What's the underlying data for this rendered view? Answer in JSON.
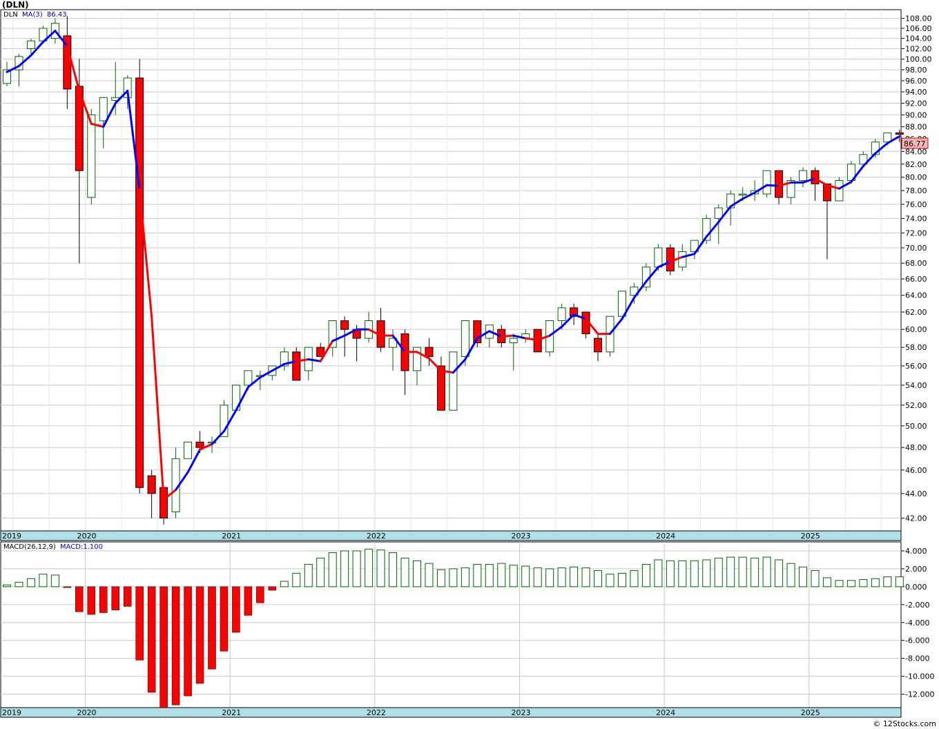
{
  "title": "(DLN)",
  "credit": "© 12Stocks.com",
  "price_panel": {
    "legend_symbol": "DLN",
    "legend_ma": "MA(3)",
    "legend_ma_value": "86.43",
    "last_price_label": "86.77",
    "y_ticks": [
      "108.00",
      "106.00",
      "104.00",
      "102.00",
      "100.00",
      "98.00",
      "96.00",
      "94.00",
      "92.00",
      "90.00",
      "88.00",
      "86.00",
      "84.00",
      "82.00",
      "80.00",
      "78.00",
      "76.00",
      "74.00",
      "72.00",
      "70.00",
      "68.00",
      "66.00",
      "64.00",
      "62.00",
      "60.00",
      "58.00",
      "56.00",
      "54.00",
      "52.00",
      "50.00",
      "48.00",
      "46.00",
      "44.00",
      "42.00"
    ],
    "x_labels": [
      "2019",
      "2020",
      "2021",
      "2022",
      "2023",
      "2024",
      "2025"
    ]
  },
  "macd_panel": {
    "legend_label": "MACD(26,12,9)",
    "legend_value": "MACD:1.100",
    "y_ticks": [
      "4.000",
      "2.000",
      "0.000",
      "-2.000",
      "-4.000",
      "-6.000",
      "-8.000",
      "-10.000",
      "-12.000"
    ],
    "x_labels": [
      "2019",
      "2020",
      "2021",
      "2022",
      "2023",
      "2024",
      "2025"
    ]
  },
  "colors": {
    "up_candle_fill": "#ffffff",
    "up_candle_stroke": "#006400",
    "down_candle_fill": "#ff0000",
    "ma_up": "#0000ff",
    "ma_down": "#ff0000",
    "macd_pos_stroke": "#006400",
    "macd_neg_fill": "#ff0000",
    "axis_band": "#b0e0e6",
    "grid": "#c8c8c8"
  },
  "chart_data": [
    {
      "type": "candlestick",
      "series_name": "DLN",
      "period": "monthly",
      "ylim": [
        41,
        109.5
      ],
      "candles": [
        {
          "o": 95.5,
          "h": 99.5,
          "l": 95,
          "c": 98
        },
        {
          "o": 98,
          "h": 101,
          "l": 95,
          "c": 100.5
        },
        {
          "o": 102,
          "h": 104,
          "l": 101,
          "c": 103.5
        },
        {
          "o": 103.5,
          "h": 106.5,
          "l": 103,
          "c": 106
        },
        {
          "o": 104,
          "h": 108,
          "l": 103,
          "c": 107
        },
        {
          "o": 104.5,
          "h": 108.5,
          "l": 91,
          "c": 94.5
        },
        {
          "o": 95,
          "h": 100,
          "l": 68,
          "c": 81
        },
        {
          "o": 77,
          "h": 91,
          "l": 76,
          "c": 90
        },
        {
          "o": 89,
          "h": 93,
          "l": 84.5,
          "c": 93
        },
        {
          "o": 92.5,
          "h": 99.5,
          "l": 90,
          "c": 93
        },
        {
          "o": 93,
          "h": 97,
          "l": 91,
          "c": 96.5
        },
        {
          "o": 96.5,
          "h": 100,
          "l": 44,
          "c": 44.5
        },
        {
          "o": 45.5,
          "h": 46,
          "l": 42,
          "c": 44
        },
        {
          "o": 44.5,
          "h": 44.5,
          "l": 41.5,
          "c": 42
        },
        {
          "o": 42.5,
          "h": 48,
          "l": 42,
          "c": 47
        },
        {
          "o": 47,
          "h": 48.5,
          "l": 47,
          "c": 48.5
        },
        {
          "o": 48.5,
          "h": 49.5,
          "l": 47.5,
          "c": 48
        },
        {
          "o": 48.5,
          "h": 49,
          "l": 47.5,
          "c": 48.5
        },
        {
          "o": 49,
          "h": 52.5,
          "l": 49,
          "c": 52
        },
        {
          "o": 51.5,
          "h": 54,
          "l": 51.5,
          "c": 54
        },
        {
          "o": 54,
          "h": 55.5,
          "l": 53.5,
          "c": 55.5
        },
        {
          "o": 55,
          "h": 55.5,
          "l": 53.5,
          "c": 55
        },
        {
          "o": 55,
          "h": 56,
          "l": 54.5,
          "c": 56
        },
        {
          "o": 56,
          "h": 58,
          "l": 55.5,
          "c": 57.5
        },
        {
          "o": 57.5,
          "h": 58,
          "l": 54.5,
          "c": 54.5
        },
        {
          "o": 55.5,
          "h": 58,
          "l": 54.5,
          "c": 58
        },
        {
          "o": 58,
          "h": 58.5,
          "l": 57,
          "c": 57
        },
        {
          "o": 58,
          "h": 61,
          "l": 57,
          "c": 61
        },
        {
          "o": 61,
          "h": 61.5,
          "l": 57,
          "c": 60
        },
        {
          "o": 60,
          "h": 60.5,
          "l": 56.5,
          "c": 59
        },
        {
          "o": 59,
          "h": 62,
          "l": 58.5,
          "c": 61
        },
        {
          "o": 61,
          "h": 62.5,
          "l": 57.5,
          "c": 58
        },
        {
          "o": 58,
          "h": 60,
          "l": 55.5,
          "c": 59
        },
        {
          "o": 59.5,
          "h": 60,
          "l": 53,
          "c": 55.5
        },
        {
          "o": 55.5,
          "h": 58,
          "l": 54,
          "c": 58
        },
        {
          "o": 58,
          "h": 59,
          "l": 56,
          "c": 57
        },
        {
          "o": 56,
          "h": 57,
          "l": 51.5,
          "c": 51.5
        },
        {
          "o": 51.5,
          "h": 57.5,
          "l": 51.5,
          "c": 57.5
        },
        {
          "o": 57,
          "h": 61,
          "l": 56,
          "c": 61
        },
        {
          "o": 61,
          "h": 61,
          "l": 58,
          "c": 58.5
        },
        {
          "o": 59,
          "h": 60.5,
          "l": 58,
          "c": 60.5
        },
        {
          "o": 60,
          "h": 60.5,
          "l": 58,
          "c": 58.5
        },
        {
          "o": 58.5,
          "h": 59.5,
          "l": 55.5,
          "c": 59
        },
        {
          "o": 59,
          "h": 60,
          "l": 58.5,
          "c": 59.5
        },
        {
          "o": 60,
          "h": 60,
          "l": 57.5,
          "c": 57.5
        },
        {
          "o": 57.5,
          "h": 61,
          "l": 57,
          "c": 61
        },
        {
          "o": 61,
          "h": 63,
          "l": 60,
          "c": 62.5
        },
        {
          "o": 62.5,
          "h": 63,
          "l": 60.5,
          "c": 61.5
        },
        {
          "o": 62,
          "h": 62,
          "l": 59,
          "c": 59.5
        },
        {
          "o": 59,
          "h": 59.5,
          "l": 56.5,
          "c": 57.5
        },
        {
          "o": 57.5,
          "h": 61.5,
          "l": 57,
          "c": 61.5
        },
        {
          "o": 61.5,
          "h": 64.5,
          "l": 61,
          "c": 64.5
        },
        {
          "o": 64,
          "h": 65.5,
          "l": 63,
          "c": 65
        },
        {
          "o": 65,
          "h": 68,
          "l": 64.5,
          "c": 67.5
        },
        {
          "o": 67.5,
          "h": 70.5,
          "l": 67,
          "c": 70
        },
        {
          "o": 70,
          "h": 70.5,
          "l": 66.5,
          "c": 67
        },
        {
          "o": 67.5,
          "h": 70.5,
          "l": 67,
          "c": 69.5
        },
        {
          "o": 69.5,
          "h": 71,
          "l": 68.5,
          "c": 71
        },
        {
          "o": 71,
          "h": 74.5,
          "l": 70.5,
          "c": 74
        },
        {
          "o": 74,
          "h": 76,
          "l": 70.5,
          "c": 75.5
        },
        {
          "o": 75.5,
          "h": 78,
          "l": 73,
          "c": 77.5
        },
        {
          "o": 77.5,
          "h": 78.5,
          "l": 76.5,
          "c": 77.5
        },
        {
          "o": 77.5,
          "h": 79.5,
          "l": 76.5,
          "c": 78
        },
        {
          "o": 77.5,
          "h": 81,
          "l": 77,
          "c": 81
        },
        {
          "o": 81,
          "h": 81,
          "l": 76,
          "c": 77
        },
        {
          "o": 77,
          "h": 80,
          "l": 76,
          "c": 79.5
        },
        {
          "o": 79.5,
          "h": 81.5,
          "l": 78.5,
          "c": 81
        },
        {
          "o": 81,
          "h": 81.5,
          "l": 76.5,
          "c": 79
        },
        {
          "o": 79,
          "h": 79,
          "l": 68.5,
          "c": 76.5
        },
        {
          "o": 76.5,
          "h": 80,
          "l": 76.5,
          "c": 79.5
        },
        {
          "o": 79.5,
          "h": 82.5,
          "l": 79,
          "c": 82
        },
        {
          "o": 82,
          "h": 84,
          "l": 82,
          "c": 83.5
        },
        {
          "o": 83.5,
          "h": 86,
          "l": 83,
          "c": 85.5
        },
        {
          "o": 85.5,
          "h": 87,
          "l": 85,
          "c": 87
        },
        {
          "o": 87,
          "h": 87.5,
          "l": 85.5,
          "c": 86.77
        }
      ],
      "ma3": [
        97.6,
        98.7,
        100.7,
        103.3,
        105.5,
        102.5,
        94.2,
        88.5,
        88,
        92,
        94.2,
        78.2,
        61.5,
        43.5,
        44.3,
        45.8,
        47.8,
        48.3,
        49.5,
        51.5,
        53.8,
        54.8,
        55.5,
        56.2,
        56.5,
        56.7,
        56.5,
        58.7,
        59.3,
        60,
        60,
        59.3,
        59.3,
        57.5,
        57.5,
        56.8,
        55.5,
        55.3,
        56.7,
        59,
        59.8,
        59.2,
        59.3,
        59,
        58.8,
        59.3,
        60.3,
        61.7,
        61.2,
        59.5,
        59.5,
        61.2,
        63.7,
        65.7,
        67.5,
        68.2,
        68.8,
        69.2,
        71.5,
        73.5,
        75.7,
        76.8,
        77.7,
        78.8,
        78.7,
        79.2,
        79.2,
        79.8,
        78.8,
        78.3,
        79.3,
        81.7,
        83.7,
        85.3,
        86.43
      ],
      "ma_trend": [
        "up",
        "up",
        "up",
        "up",
        "up",
        "down",
        "down",
        "down",
        "up",
        "up",
        "up",
        "down",
        "down",
        "down",
        "up",
        "up",
        "down",
        "up",
        "up",
        "up",
        "up",
        "up",
        "up",
        "up",
        "down",
        "up",
        "down",
        "up",
        "up",
        "up",
        "down",
        "down",
        "up",
        "down",
        "down",
        "down",
        "down",
        "up",
        "up",
        "up",
        "up",
        "down",
        "up",
        "down",
        "down",
        "up",
        "up",
        "up",
        "down",
        "down",
        "up",
        "up",
        "up",
        "up",
        "up",
        "down",
        "up",
        "up",
        "up",
        "up",
        "up",
        "up",
        "up",
        "up",
        "down",
        "up",
        "up",
        "down",
        "down",
        "up",
        "up",
        "up",
        "up",
        "up",
        "up"
      ],
      "first_month": "2019-06",
      "year_labels": [
        "2019",
        "2020",
        "2021",
        "2022",
        "2023",
        "2024",
        "2025"
      ]
    },
    {
      "type": "bar",
      "series_name": "MACD(26,12,9)",
      "ylim": [
        -13.5,
        5
      ],
      "values": [
        0.2,
        0.5,
        0.9,
        1.4,
        1.3,
        -0.1,
        -2.8,
        -3.1,
        -2.9,
        -2.6,
        -2.2,
        -8.2,
        -11.8,
        -13.5,
        -13.2,
        -12.2,
        -10.8,
        -9.2,
        -7.2,
        -5.1,
        -3.2,
        -1.8,
        -0.4,
        0.6,
        1.5,
        2.5,
        3.2,
        3.8,
        4.0,
        4.0,
        4.2,
        4.1,
        3.8,
        3.2,
        2.9,
        2.6,
        1.9,
        2.0,
        2.1,
        2.5,
        2.5,
        2.6,
        2.4,
        2.3,
        2.1,
        2.0,
        2.1,
        2.2,
        2.1,
        1.8,
        1.4,
        1.5,
        1.8,
        2.5,
        3.0,
        2.9,
        2.9,
        2.9,
        3.0,
        3.2,
        3.3,
        3.3,
        3.2,
        3.3,
        3.0,
        2.6,
        2.2,
        1.8,
        1.0,
        0.7,
        0.7,
        0.8,
        0.9,
        1.1,
        1.1
      ]
    }
  ]
}
